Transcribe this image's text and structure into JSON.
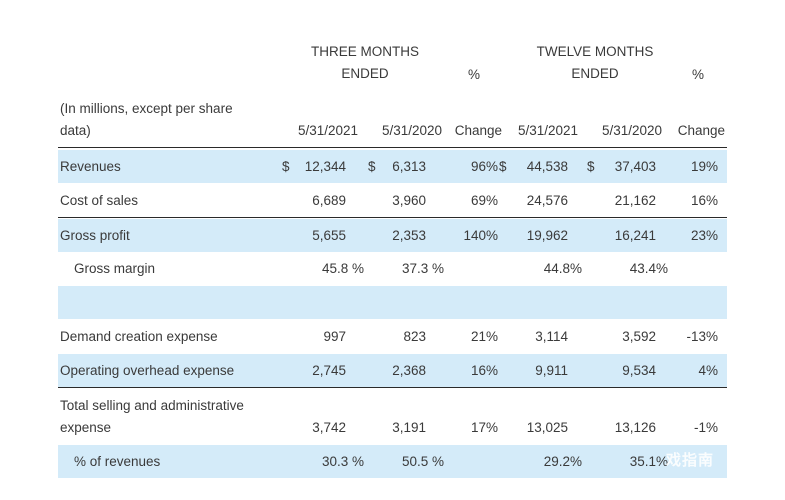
{
  "header": {
    "three_months_line1": "THREE MONTHS",
    "three_months_line2": "ENDED",
    "twelve_months_line1": "TWELVE MONTHS",
    "twelve_months_line2": "ENDED",
    "pct_symbol_1": "%",
    "pct_symbol_2": "%",
    "units_line1": "(In millions, except per share",
    "units_line2": "data)",
    "col1": "5/31/2021",
    "col2": "5/31/2020",
    "col3": "Change",
    "col4": "5/31/2021",
    "col5": "5/31/2020",
    "col6": "Change"
  },
  "rows": {
    "revenues": {
      "label": "Revenues",
      "cur1": "$",
      "v1": "12,344",
      "cur2": "$",
      "v2": "6,313",
      "v3": "96%",
      "cur4": "$",
      "v4": "44,538",
      "cur5": "$",
      "v5": "37,403",
      "v6": "19%"
    },
    "cost_of_sales": {
      "label": "Cost of sales",
      "v1": "6,689",
      "v2": "3,960",
      "v3": "69%",
      "v4": "24,576",
      "v5": "21,162",
      "v6": "16%"
    },
    "gross_profit": {
      "label": "Gross profit",
      "v1": "5,655",
      "v2": "2,353",
      "v3": "140%",
      "v4": "19,962",
      "v5": "16,241",
      "v6": "23%"
    },
    "gross_margin": {
      "label": "Gross margin",
      "v1": "45.8 %",
      "v2": "37.3 %",
      "v4": "44.8%",
      "v5": "43.4%"
    },
    "demand_creation": {
      "label": "Demand creation expense",
      "v1": "997",
      "v2": "823",
      "v3": "21%",
      "v4": "3,114",
      "v5": "3,592",
      "v6": "-13%"
    },
    "operating_overhead": {
      "label": "Operating overhead expense",
      "v1": "2,745",
      "v2": "2,368",
      "v3": "16%",
      "v4": "9,911",
      "v5": "9,534",
      "v6": "4%"
    },
    "total_sga": {
      "label_line1": "Total selling and administrative",
      "label_line2": "expense",
      "v1": "3,742",
      "v2": "3,191",
      "v3": "17%",
      "v4": "13,025",
      "v5": "13,126",
      "v6": "-1%"
    },
    "pct_revenues": {
      "label": "% of revenues",
      "v1": "30.3 %",
      "v2": "50.5 %",
      "v4": "29.2%",
      "v5": "35.1%"
    }
  },
  "watermark": {
    "text": "戏指南"
  },
  "colors": {
    "band": "#d4ebf9",
    "rule": "#2a2a2a",
    "text": "#3a3a3a"
  }
}
